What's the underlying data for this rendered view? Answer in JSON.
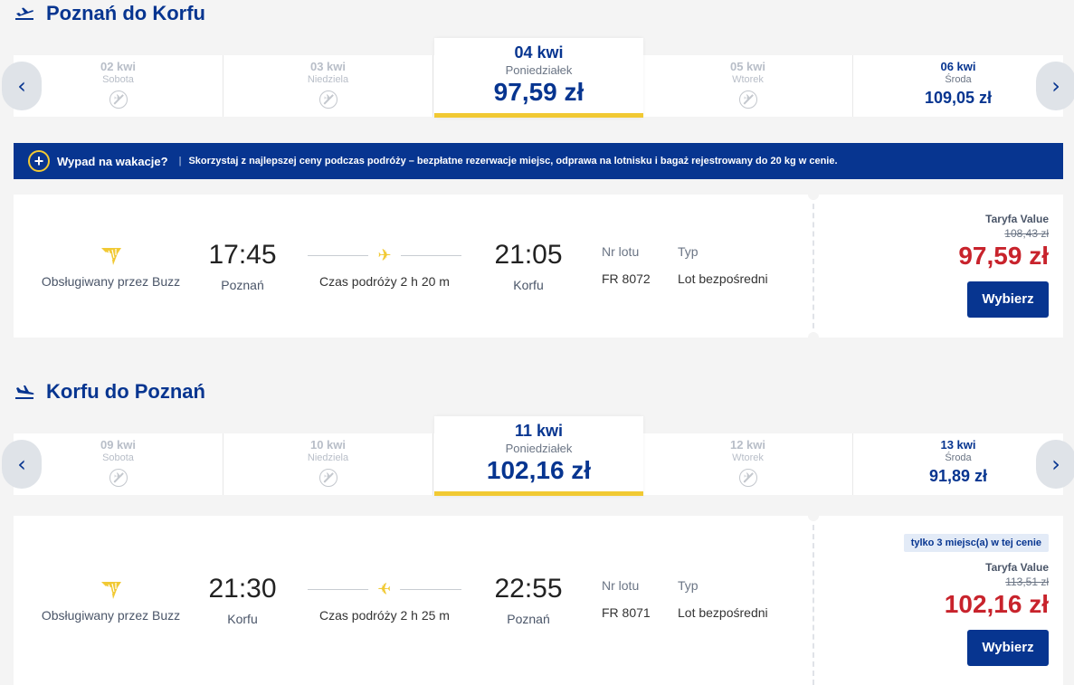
{
  "outbound": {
    "title": "Poznań do Korfu",
    "dates": [
      {
        "date": "02 kwi",
        "weekday": "Sobota",
        "price": null
      },
      {
        "date": "03 kwi",
        "weekday": "Niedziela",
        "price": null
      },
      {
        "date": "04 kwi",
        "weekday": "Poniedziałek",
        "price": "97,59 zł"
      },
      {
        "date": "05 kwi",
        "weekday": "Wtorek",
        "price": null
      },
      {
        "date": "06 kwi",
        "weekday": "Środa",
        "price": "109,05 zł"
      }
    ],
    "flight": {
      "operated_by": "Obsługiwany przez Buzz",
      "depart_time": "17:45",
      "depart_city": "Poznań",
      "duration": "Czas podróży 2 h 20 m",
      "arrive_time": "21:05",
      "arrive_city": "Korfu",
      "flight_no_label": "Nr lotu",
      "flight_no": "FR 8072",
      "type_label": "Typ",
      "type": "Lot bezpośredni",
      "fare_label": "Taryfa Value",
      "old_price": "108,43 zł",
      "price": "97,59 zł",
      "select_label": "Wybierz"
    }
  },
  "banner": {
    "title": "Wypad na wakacje?",
    "separator": "|",
    "text": "Skorzystaj z najlepszej ceny podczas podróży – bezpłatne rezerwacje miejsc, odprawa na lotnisku i bagaż rejestrowany do 20 kg w cenie."
  },
  "return": {
    "title": "Korfu do Poznań",
    "dates": [
      {
        "date": "09 kwi",
        "weekday": "Sobota",
        "price": null
      },
      {
        "date": "10 kwi",
        "weekday": "Niedziela",
        "price": null
      },
      {
        "date": "11 kwi",
        "weekday": "Poniedziałek",
        "price": "102,16 zł"
      },
      {
        "date": "12 kwi",
        "weekday": "Wtorek",
        "price": null
      },
      {
        "date": "13 kwi",
        "weekday": "Środa",
        "price": "91,89 zł"
      }
    ],
    "flight": {
      "seats_badge": "tylko 3 miejsc(a) w tej cenie",
      "operated_by": "Obsługiwany przez Buzz",
      "depart_time": "21:30",
      "depart_city": "Korfu",
      "duration": "Czas podróży 2 h 25 m",
      "arrive_time": "22:55",
      "arrive_city": "Poznań",
      "flight_no_label": "Nr lotu",
      "flight_no": "FR 8071",
      "type_label": "Typ",
      "type": "Lot bezpośredni",
      "fare_label": "Taryfa Value",
      "old_price": "113,51 zł",
      "price": "102,16 zł",
      "select_label": "Wybierz"
    }
  },
  "nav": {
    "prev": "‹",
    "next": "›"
  },
  "colors": {
    "brand": "#073590",
    "accent": "#f1c933",
    "price": "#c8232c"
  }
}
